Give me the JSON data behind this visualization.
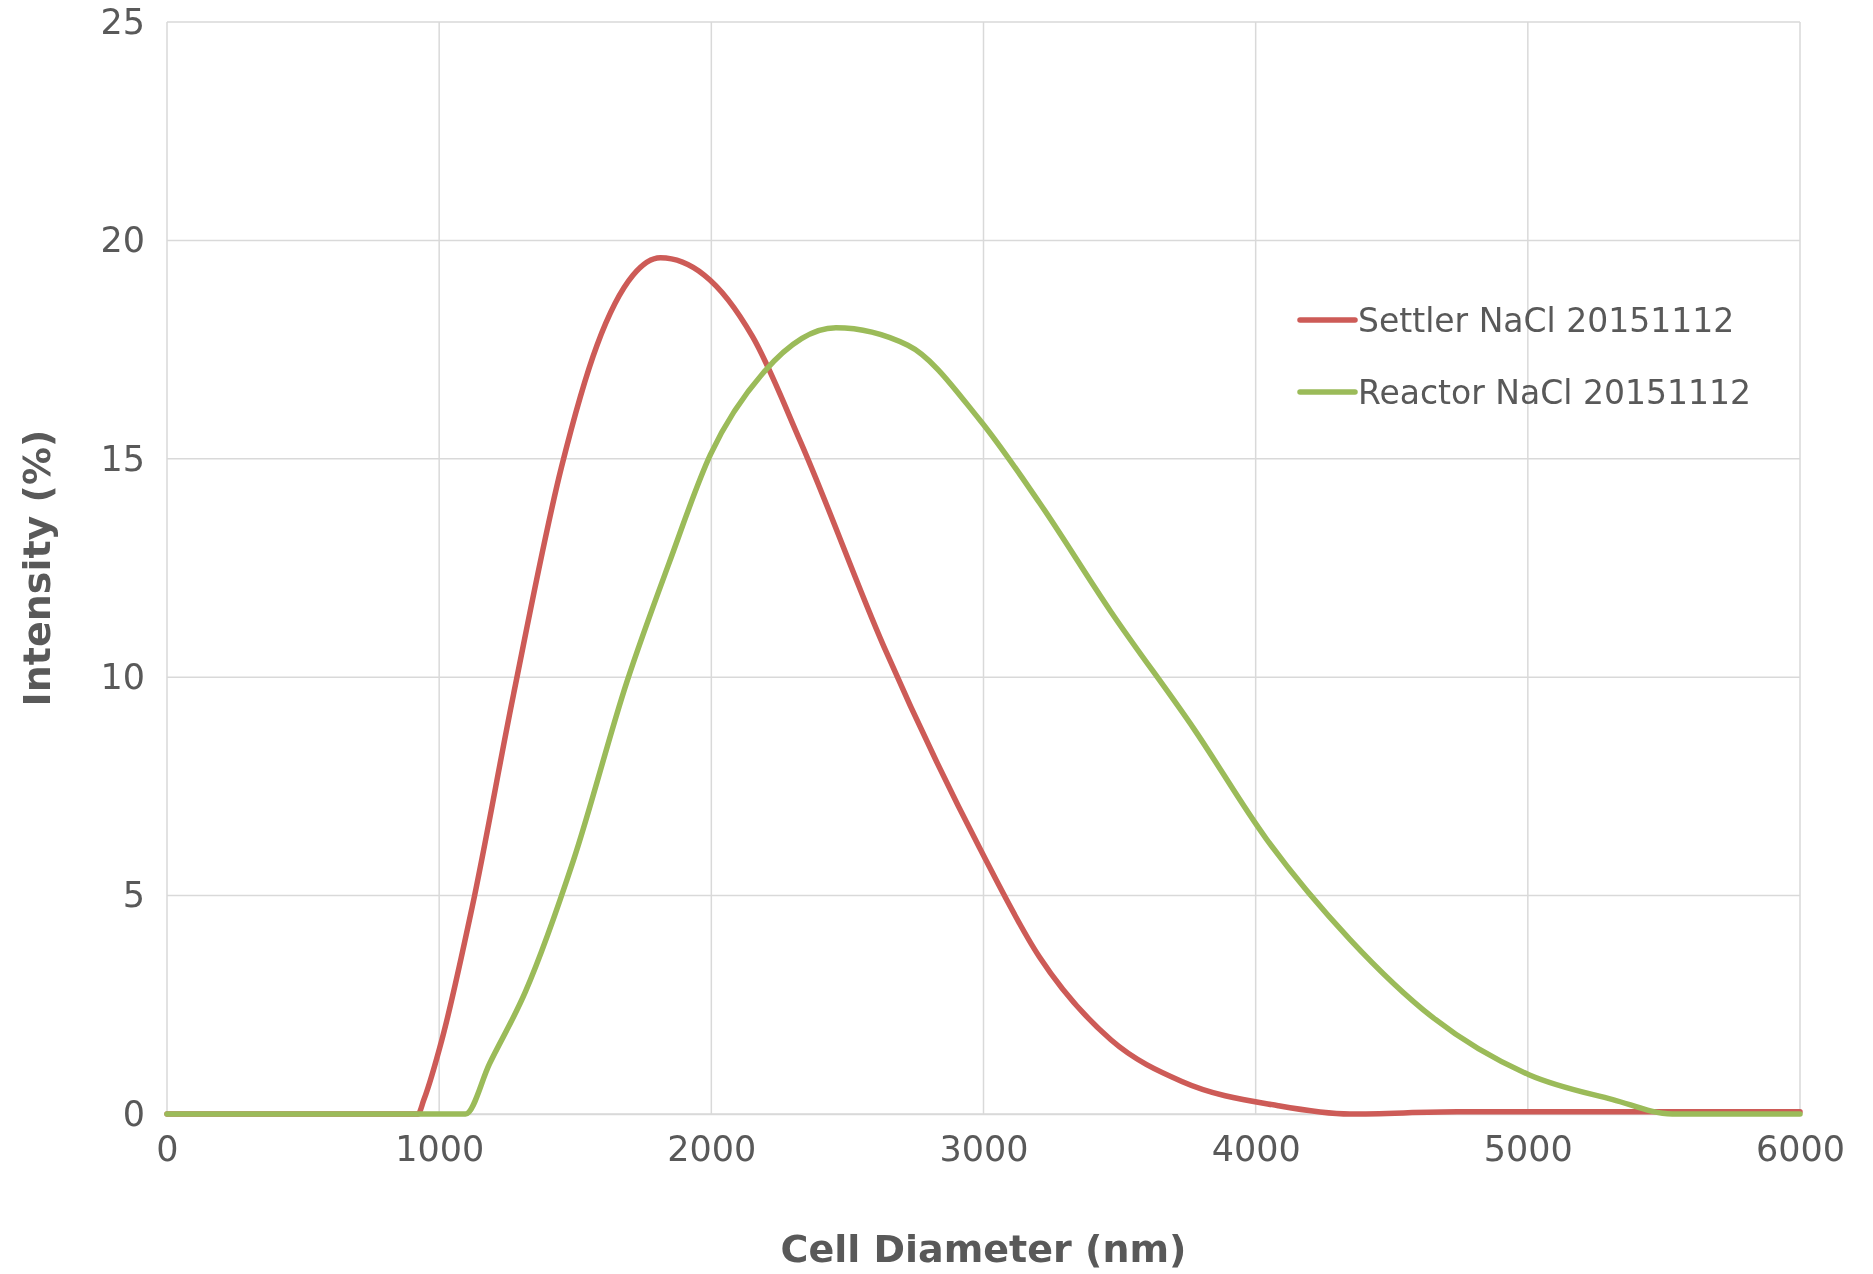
{
  "chart_data": {
    "type": "line",
    "xlabel": "Cell Diameter (nm)",
    "ylabel": "Intensity (%)",
    "xlim": [
      0,
      6000
    ],
    "xticks": [
      0,
      1000,
      2000,
      3000,
      4000,
      5000,
      6000
    ],
    "ylim": [
      0,
      25
    ],
    "yticks": [
      0,
      5,
      10,
      15,
      20,
      25
    ],
    "grid": true,
    "legend": "top right",
    "marker": "none",
    "line_style": "solid",
    "series": [
      {
        "name": "Settler NaCl 20151112",
        "color": "#cd5b57",
        "x": [
          0,
          500,
          922,
          944,
          1010,
          1120,
          1273,
          1449,
          1580,
          1712,
          1813,
          1975,
          2151,
          2327,
          2634,
          2985,
          3205,
          3468,
          3731,
          4083,
          4346,
          4741,
          6000
        ],
        "values": [
          0,
          0,
          0,
          0.33,
          1.7,
          4.7,
          9.6,
          14.8,
          17.6,
          19.2,
          19.6,
          19.2,
          17.8,
          15.4,
          10.7,
          6.1,
          3.6,
          1.7,
          0.74,
          0.19,
          0,
          0.05,
          0.05
        ]
      },
      {
        "name": "Reactor NaCl 20151112",
        "color": "#9bbb59",
        "x": [
          0,
          500,
          1097,
          1185,
          1317,
          1493,
          1690,
          1844,
          1997,
          2195,
          2458,
          2722,
          2985,
          3205,
          3468,
          3775,
          4039,
          4346,
          4653,
          5004,
          5312,
          5531,
          6000
        ],
        "values": [
          0,
          0,
          0,
          1.15,
          2.8,
          5.8,
          9.9,
          12.6,
          15.1,
          17.0,
          18.0,
          17.6,
          15.9,
          14.0,
          11.5,
          8.8,
          6.3,
          4.0,
          2.2,
          0.9,
          0.33,
          0,
          0
        ]
      }
    ]
  }
}
